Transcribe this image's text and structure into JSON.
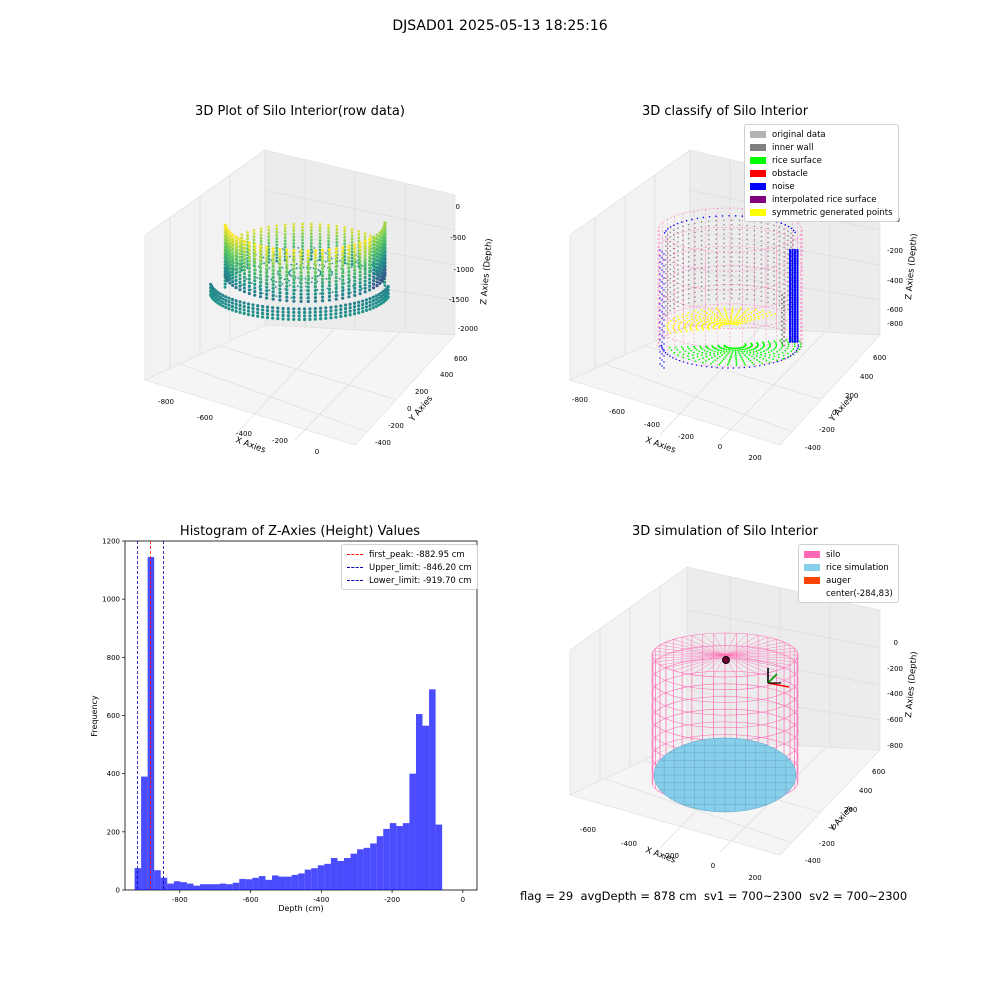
{
  "figure": {
    "suptitle": "DJSAD01 2025-05-13 18:25:16",
    "bottom_text": "flag = 29  avgDepth = 878 cm  sv1 = 700~2300  sv2 = 700~2300"
  },
  "chart_data": [
    {
      "type": "scatter3d",
      "title": "3D Plot of Silo Interior(row data)",
      "xlabel": "X Axies",
      "ylabel": "Y Axies",
      "zlabel": "Z Axies (Depth)",
      "x_ticks": [
        "-800",
        "-600",
        "-400",
        "-200",
        "0"
      ],
      "y_ticks": [
        "-400",
        "-200",
        "0",
        "200",
        "400",
        "600"
      ],
      "z_ticks": [
        "0",
        "-500",
        "-1000",
        "-1500",
        "-2000"
      ],
      "colormap": "viridis",
      "grid": true
    },
    {
      "type": "scatter3d",
      "title": "3D classify of Silo Interior",
      "xlabel": "X Axies",
      "ylabel": "Y Axies",
      "zlabel": "Z Axies (Depth)",
      "x_ticks": [
        "-800",
        "-600",
        "-400",
        "-200",
        "0",
        "200"
      ],
      "y_ticks": [
        "-400",
        "-200",
        "0",
        "200",
        "400",
        "600"
      ],
      "z_ticks": [
        "0",
        "-200",
        "-400",
        "-600",
        "-800"
      ],
      "legend_position": "top-right",
      "legend": [
        {
          "label": "original data",
          "color": "#b3b3b3"
        },
        {
          "label": "inner wall",
          "color": "#808080"
        },
        {
          "label": "rice surface",
          "color": "#00ff00"
        },
        {
          "label": "obstacle",
          "color": "#ff0000"
        },
        {
          "label": "noise",
          "color": "#0000ff"
        },
        {
          "label": "interpolated rice surface",
          "color": "#800080"
        },
        {
          "label": "symmetric generated points",
          "color": "#ffff00"
        }
      ],
      "grid": true
    },
    {
      "type": "bar",
      "title": "Histogram of Z-Axies (Height) Values",
      "xlabel": "Depth (cm)",
      "ylabel": "Frequency",
      "xlim": [
        -955,
        40
      ],
      "ylim": [
        0,
        1200
      ],
      "x_ticks": [
        "-800",
        "-600",
        "-400",
        "-200",
        "0"
      ],
      "x_tick_values": [
        -800,
        -600,
        -400,
        -200,
        0
      ],
      "y_ticks": [
        "0",
        "200",
        "400",
        "600",
        "800",
        "1000",
        "1200"
      ],
      "y_tick_values": [
        0,
        200,
        400,
        600,
        800,
        1000,
        1200
      ],
      "bin_start": -928,
      "bin_width": 18.5,
      "values": [
        75,
        390,
        1145,
        68,
        42,
        22,
        30,
        27,
        22,
        15,
        20,
        20,
        20,
        22,
        20,
        25,
        38,
        37,
        42,
        48,
        35,
        50,
        46,
        46,
        52,
        57,
        70,
        75,
        85,
        90,
        110,
        100,
        110,
        125,
        140,
        145,
        160,
        185,
        210,
        230,
        220,
        230,
        400,
        605,
        565,
        690,
        225
      ],
      "color": "#0000ff",
      "vlines": [
        {
          "label": "first_peak: -882.95 cm",
          "x": -882.95,
          "color": "#ff0000"
        },
        {
          "label": "Upper_limit: -846.20 cm",
          "x": -846.2,
          "color": "#0000aa"
        },
        {
          "label": "Lower_limit: -919.70 cm",
          "x": -919.7,
          "color": "#0000aa"
        }
      ],
      "legend_position": "top-right"
    },
    {
      "type": "surface3d",
      "title": "3D simulation of Silo Interior",
      "xlabel": "X Axies",
      "ylabel": "Y Axies",
      "zlabel": "Z Axies (Depth)",
      "x_ticks": [
        "-600",
        "-400",
        "-200",
        "0",
        "200"
      ],
      "y_ticks": [
        "-400",
        "-200",
        "0",
        "200",
        "400",
        "600"
      ],
      "z_ticks": [
        "0",
        "-200",
        "-400",
        "-600",
        "-800"
      ],
      "legend_position": "top-right",
      "legend": [
        {
          "label": "silo",
          "color": "#ff69b4"
        },
        {
          "label": "rice simulation",
          "color": "#87ceeb"
        },
        {
          "label": "auger",
          "color": "#ff4500"
        },
        {
          "label": "center(-284,83)",
          "color": ""
        }
      ],
      "grid": true
    }
  ]
}
